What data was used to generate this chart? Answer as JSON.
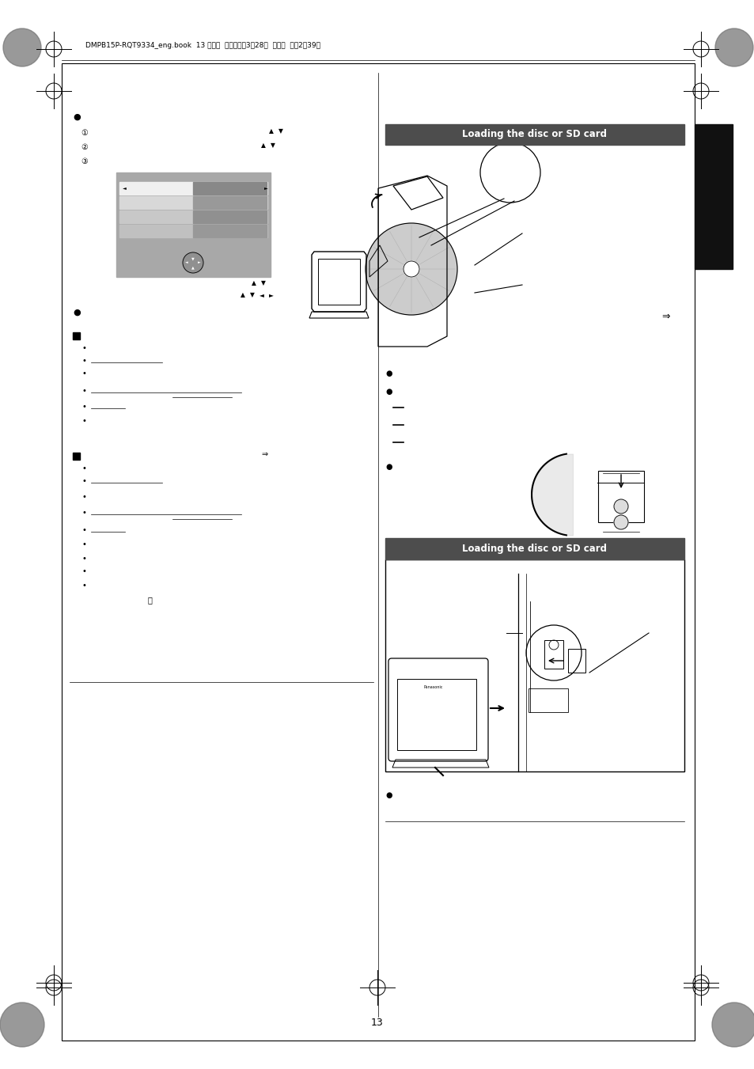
{
  "page_header": "DMPB15P-RQT9334_eng.book  13 ページ  ２００９年3月28日  土曜日  午後2時39分",
  "bg_color": "#ffffff",
  "border_color": "#000000",
  "section_bar_color": "#4d4d4d",
  "section_bar_text_color": "#ffffff",
  "black_tab_color": "#111111",
  "right_section_title1": "Loading the disc or SD card",
  "right_section_title2": "Loading the disc or SD card",
  "menu_bg": "#a8a8a8",
  "menu_row0_light": "#f0f0f0",
  "menu_row0_dark": "#888888",
  "menu_row1_light": "#d8d8d8",
  "menu_row1_dark": "#999999",
  "menu_row2_light": "#c8c8c8",
  "menu_row2_dark": "#909090",
  "menu_row3_light": "#c0c0c0",
  "menu_row3_dark": "#989898"
}
